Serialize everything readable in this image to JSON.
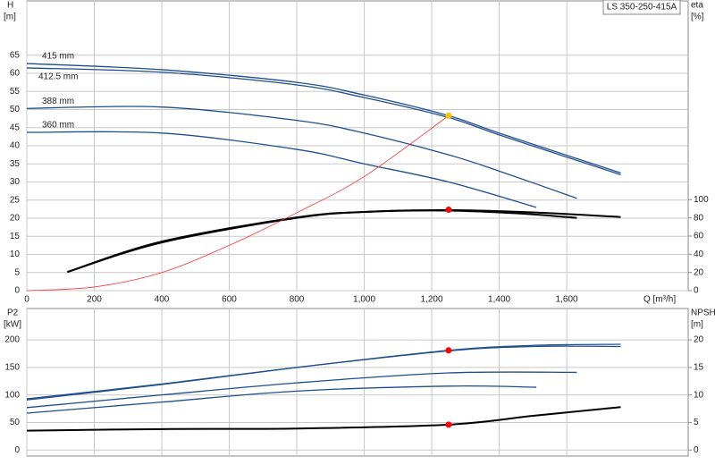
{
  "chart_data": [
    {
      "type": "line",
      "title": "LS 350-250-415A",
      "x_label": "Q [m³/h]",
      "y_label": "H",
      "y_unit": "[m]",
      "y2_label": "eta",
      "y2_unit": "[%]",
      "xlim": [
        0,
        1960
      ],
      "xticks": [
        0,
        200,
        400,
        600,
        800,
        {
          "value": 1000,
          "label": "1,000"
        },
        {
          "value": 1200,
          "label": "1,200"
        },
        {
          "value": 1400,
          "label": "1,400"
        },
        {
          "value": 1600,
          "label": "1,600"
        }
      ],
      "ylim": [
        0,
        80
      ],
      "yticks": [
        0,
        5,
        10,
        15,
        20,
        25,
        30,
        35,
        40,
        45,
        50,
        55,
        60,
        65
      ],
      "y2lim": [
        0,
        318.6
      ],
      "y2ticks": [
        0,
        20,
        40,
        60,
        80,
        100
      ],
      "grid": true,
      "series": [
        {
          "name": "415 mm",
          "color": "#1f4e8c",
          "x": [
            0,
            400,
            800,
            1000,
            1250,
            1400,
            1760
          ],
          "values": [
            62.7,
            61,
            57.5,
            54,
            48.3,
            43.5,
            32.5
          ]
        },
        {
          "name": "412.5 mm",
          "color": "#1f4e8c",
          "x": [
            0,
            400,
            800,
            1000,
            1250,
            1400,
            1760
          ],
          "values": [
            61.5,
            60.3,
            56.8,
            53.3,
            47.8,
            43,
            32
          ]
        },
        {
          "name": "388 mm",
          "color": "#1f4e8c",
          "x": [
            0,
            400,
            800,
            1000,
            1250,
            1400,
            1630
          ],
          "values": [
            50.3,
            50.7,
            47,
            43.5,
            37.5,
            33,
            25.5
          ]
        },
        {
          "name": "360 mm",
          "color": "#1f4e8c",
          "x": [
            0,
            400,
            800,
            1000,
            1250,
            1510
          ],
          "values": [
            43.7,
            43.5,
            39,
            35,
            30,
            23
          ]
        },
        {
          "color": "#000000",
          "axis": "y2",
          "x": [
            120,
            400,
            800,
            1000,
            1250,
            1500,
            1760
          ],
          "values": [
            20.5,
            53,
            80,
            86.5,
            88.5,
            86,
            81
          ]
        },
        {
          "color": "#000000",
          "axis": "y2",
          "x": [
            120,
            400,
            800,
            1000,
            1250,
            1450,
            1630
          ],
          "values": [
            20.5,
            54,
            80.5,
            86.5,
            88,
            85,
            80
          ]
        },
        {
          "color": "#ff3333",
          "x": [
            0,
            200,
            400,
            600,
            800,
            1000,
            1250
          ],
          "values": [
            0,
            1,
            5,
            12.5,
            21.5,
            31.5,
            48.3
          ]
        }
      ],
      "points": [
        {
          "x": 1250,
          "y": 48.3,
          "color": "#ffc000"
        },
        {
          "x": 1250,
          "y": 89,
          "axis": "y2",
          "color": "#ff0000"
        }
      ]
    },
    {
      "type": "line",
      "y_label": "P2",
      "y_unit": "[kW]",
      "y2_label": "NPSH",
      "y2_unit": "[m]",
      "xlim": [
        0,
        1960
      ],
      "xticks": [
        0,
        200,
        400,
        600,
        800,
        1000,
        1200,
        1400,
        1600
      ],
      "ylim": [
        -11,
        257
      ],
      "yticks": [
        0,
        50,
        100,
        150,
        200
      ],
      "y2lim": [
        -1.1,
        25.7
      ],
      "y2ticks": [
        0,
        5,
        10,
        15,
        20
      ],
      "grid": true,
      "series": [
        {
          "color": "#1f4e8c",
          "x": [
            0,
            400,
            800,
            1250,
            1500,
            1760
          ],
          "values": [
            93,
            120,
            150,
            180,
            188,
            188
          ]
        },
        {
          "color": "#1f4e8c",
          "x": [
            0,
            400,
            800,
            1250,
            1500,
            1760
          ],
          "values": [
            91,
            119,
            150,
            181,
            190,
            192
          ]
        },
        {
          "color": "#1f4e8c",
          "x": [
            0,
            400,
            800,
            1250,
            1630
          ],
          "values": [
            77,
            100,
            122,
            140,
            141
          ]
        },
        {
          "color": "#1f4e8c",
          "x": [
            0,
            400,
            800,
            1250,
            1510
          ],
          "values": [
            67,
            87,
            107,
            116,
            114
          ]
        },
        {
          "color": "#000000",
          "axis": "y2",
          "x": [
            0,
            400,
            800,
            1250,
            1500,
            1760
          ],
          "values": [
            3.5,
            3.8,
            3.9,
            4.6,
            6.2,
            7.8
          ]
        }
      ],
      "points": [
        {
          "x": 1250,
          "y": 181,
          "color": "#ff0000"
        },
        {
          "x": 1250,
          "y": 4.6,
          "axis": "y2",
          "color": "#ff0000"
        }
      ]
    }
  ]
}
